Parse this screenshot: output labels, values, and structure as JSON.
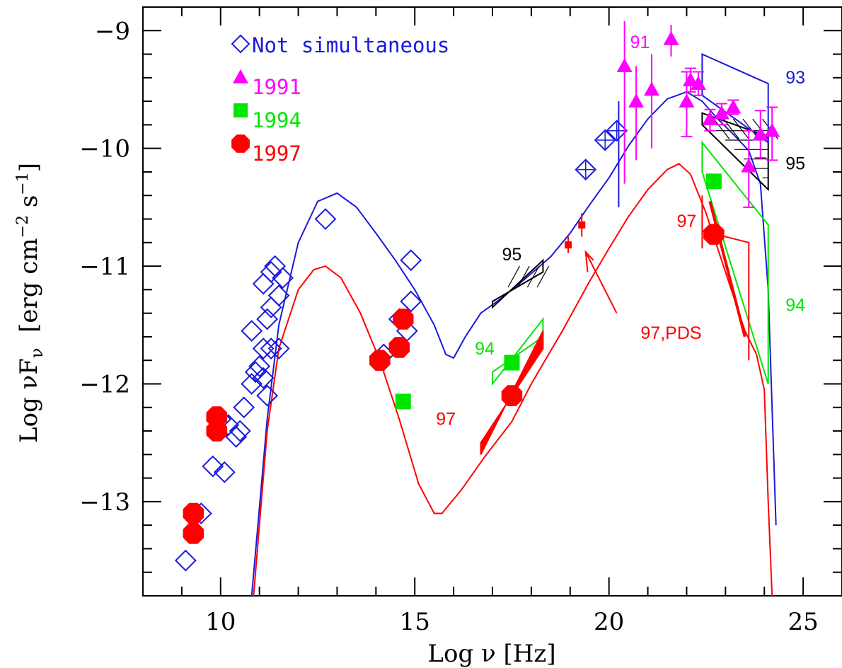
{
  "chart_data": {
    "type": "scatter",
    "title": "",
    "xlabel": "Log ν [Hz]",
    "ylabel_parts": {
      "main": "Log νF",
      "sub": "ν",
      "bracket_open": "[erg cm",
      "exp1": "−2",
      "mid": " s",
      "exp2": "−1",
      "bracket_close": "]"
    },
    "xlim": [
      8,
      26
    ],
    "ylim": [
      -13.8,
      -8.8
    ],
    "x_ticks": [
      10,
      15,
      20,
      25
    ],
    "x_tick_labels": [
      "10",
      "15",
      "20",
      "25"
    ],
    "y_ticks": [
      -9,
      -10,
      -11,
      -12,
      -13
    ],
    "y_tick_labels": [
      "−9",
      "−10",
      "−11",
      "−12",
      "−13"
    ],
    "legend": {
      "placement": "top-left",
      "entries": [
        {
          "label": "Not simultaneous",
          "marker": "open-diamond",
          "color": "#1a1adb"
        },
        {
          "label": "1991",
          "marker": "triangle",
          "color": "#ff00ff"
        },
        {
          "label": "1994",
          "marker": "square",
          "color": "#00e600"
        },
        {
          "label": "1997",
          "marker": "octagon",
          "color": "#ff0000"
        }
      ]
    },
    "colors": {
      "blue": "#1a1adb",
      "magenta": "#ff00ff",
      "green": "#00e600",
      "red": "#ff0000",
      "black": "#000000"
    },
    "series": [
      {
        "name": "Not simultaneous",
        "marker": "open-diamond",
        "points": [
          [
            9.1,
            -13.5
          ],
          [
            9.5,
            -13.1
          ],
          [
            9.8,
            -12.7
          ],
          [
            10.1,
            -12.75
          ],
          [
            10.0,
            -12.3
          ],
          [
            10.2,
            -12.35
          ],
          [
            10.4,
            -12.45
          ],
          [
            10.5,
            -12.4
          ],
          [
            10.6,
            -12.2
          ],
          [
            10.8,
            -12.0
          ],
          [
            11.0,
            -11.85
          ],
          [
            11.1,
            -11.95
          ],
          [
            11.2,
            -12.1
          ],
          [
            10.8,
            -11.55
          ],
          [
            10.9,
            -11.9
          ],
          [
            11.1,
            -11.7
          ],
          [
            11.3,
            -11.7
          ],
          [
            11.5,
            -11.7
          ],
          [
            11.2,
            -11.45
          ],
          [
            11.3,
            -11.35
          ],
          [
            11.5,
            -11.25
          ],
          [
            11.1,
            -11.15
          ],
          [
            11.3,
            -11.05
          ],
          [
            11.4,
            -11.0
          ],
          [
            11.6,
            -11.1
          ],
          [
            12.7,
            -10.6
          ],
          [
            14.2,
            -11.75
          ],
          [
            14.6,
            -11.45
          ],
          [
            14.8,
            -11.55
          ],
          [
            14.9,
            -11.3
          ],
          [
            14.9,
            -10.95
          ],
          [
            19.4,
            -10.18
          ],
          [
            19.9,
            -9.93
          ],
          [
            20.2,
            -9.85
          ]
        ]
      },
      {
        "name": "1991",
        "marker": "triangle",
        "points": [
          [
            20.4,
            -9.3
          ],
          [
            20.7,
            -9.6
          ],
          [
            21.1,
            -9.5
          ],
          [
            21.6,
            -9.07
          ],
          [
            22.0,
            -9.6
          ],
          [
            22.1,
            -9.42
          ],
          [
            22.3,
            -9.45
          ],
          [
            22.6,
            -9.75
          ],
          [
            22.9,
            -9.7
          ],
          [
            23.2,
            -9.65
          ],
          [
            23.6,
            -10.15
          ],
          [
            23.9,
            -9.88
          ],
          [
            24.2,
            -9.85
          ]
        ]
      },
      {
        "name": "1994",
        "marker": "square",
        "points": [
          [
            14.7,
            -12.15
          ],
          [
            17.5,
            -11.82
          ],
          [
            22.7,
            -10.28
          ]
        ]
      },
      {
        "name": "1997",
        "marker": "octagon",
        "points": [
          [
            9.3,
            -13.1
          ],
          [
            9.3,
            -13.27
          ],
          [
            9.9,
            -12.28
          ],
          [
            9.9,
            -12.4
          ],
          [
            14.1,
            -11.8
          ],
          [
            14.6,
            -11.69
          ],
          [
            14.7,
            -11.45
          ],
          [
            17.5,
            -12.1
          ],
          [
            22.7,
            -10.73
          ]
        ]
      }
    ],
    "models": [
      {
        "name": "blue model",
        "color": "#1a1adb",
        "points": [
          [
            10.8,
            -13.8
          ],
          [
            11.2,
            -12.3
          ],
          [
            11.5,
            -11.5
          ],
          [
            12.0,
            -10.8
          ],
          [
            12.5,
            -10.45
          ],
          [
            13.0,
            -10.38
          ],
          [
            13.5,
            -10.5
          ],
          [
            14.0,
            -10.72
          ],
          [
            14.5,
            -10.95
          ],
          [
            15.0,
            -11.2
          ],
          [
            15.5,
            -11.5
          ],
          [
            15.8,
            -11.75
          ],
          [
            16.0,
            -11.78
          ],
          [
            16.3,
            -11.6
          ],
          [
            16.7,
            -11.4
          ],
          [
            17.2,
            -11.28
          ],
          [
            17.8,
            -11.12
          ],
          [
            18.5,
            -10.92
          ],
          [
            19.0,
            -10.72
          ],
          [
            19.5,
            -10.48
          ],
          [
            20.0,
            -10.25
          ],
          [
            20.5,
            -9.98
          ],
          [
            21.0,
            -9.75
          ],
          [
            21.5,
            -9.58
          ],
          [
            22.0,
            -9.52
          ],
          [
            22.4,
            -9.6
          ],
          [
            22.8,
            -9.75
          ],
          [
            23.2,
            -9.88
          ],
          [
            23.6,
            -10.02
          ],
          [
            23.9,
            -10.3
          ],
          [
            24.1,
            -11.2
          ],
          [
            24.2,
            -12.2
          ],
          [
            24.3,
            -13.2
          ]
        ]
      },
      {
        "name": "red model",
        "color": "#ff0000",
        "points": [
          [
            10.85,
            -13.8
          ],
          [
            11.2,
            -12.4
          ],
          [
            11.5,
            -11.7
          ],
          [
            12.0,
            -11.2
          ],
          [
            12.4,
            -11.03
          ],
          [
            12.7,
            -11.0
          ],
          [
            13.1,
            -11.1
          ],
          [
            13.6,
            -11.4
          ],
          [
            14.1,
            -11.8
          ],
          [
            14.6,
            -12.3
          ],
          [
            15.1,
            -12.85
          ],
          [
            15.5,
            -13.1
          ],
          [
            15.7,
            -13.1
          ],
          [
            16.2,
            -12.9
          ],
          [
            16.8,
            -12.62
          ],
          [
            17.5,
            -12.32
          ],
          [
            18.0,
            -12.0
          ],
          [
            18.8,
            -11.55
          ],
          [
            19.5,
            -11.13
          ],
          [
            20.0,
            -10.85
          ],
          [
            20.5,
            -10.58
          ],
          [
            21.0,
            -10.35
          ],
          [
            21.5,
            -10.18
          ],
          [
            21.8,
            -10.13
          ],
          [
            22.1,
            -10.22
          ],
          [
            22.5,
            -10.55
          ],
          [
            23.0,
            -11.05
          ],
          [
            23.5,
            -11.55
          ],
          [
            23.8,
            -11.75
          ],
          [
            24.0,
            -12.05
          ],
          [
            24.1,
            -13.0
          ],
          [
            24.2,
            -13.8
          ]
        ]
      }
    ],
    "annotations": [
      {
        "text": "91",
        "x": 20.8,
        "y": -9.15,
        "color": "#ff00ff"
      },
      {
        "text": "93",
        "x": 24.8,
        "y": -9.45,
        "color": "#1a1adb"
      },
      {
        "text": "95",
        "x": 24.8,
        "y": -10.18,
        "color": "#000000"
      },
      {
        "text": "95",
        "x": 17.5,
        "y": -10.95,
        "color": "#000000"
      },
      {
        "text": "94",
        "x": 24.8,
        "y": -11.38,
        "color": "#00e600"
      },
      {
        "text": "94",
        "x": 16.8,
        "y": -11.75,
        "color": "#00e600"
      },
      {
        "text": "97",
        "x": 22.0,
        "y": -10.67,
        "color": "#ff0000"
      },
      {
        "text": "97",
        "x": 15.8,
        "y": -12.35,
        "color": "#ff0000"
      },
      {
        "text": "97,PDS",
        "x": 21.6,
        "y": -11.62,
        "color": "#ff0000"
      }
    ]
  }
}
